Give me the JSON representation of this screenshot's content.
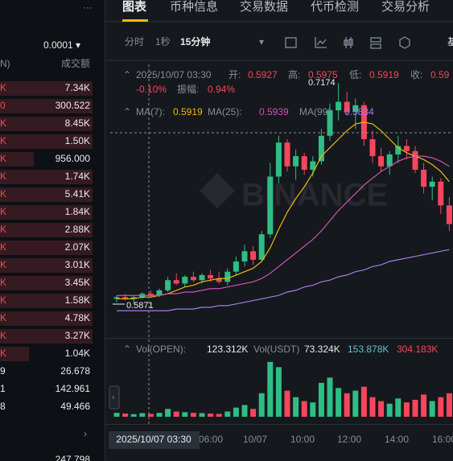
{
  "header": {
    "more": "···",
    "tabs": [
      "图表",
      "币种信息",
      "交易数据",
      "代币检测",
      "交易分析"
    ],
    "active_tab": 0
  },
  "order_book": {
    "precision": "0.0001 ▾",
    "col_left": "N)",
    "col_right": "成交额",
    "rows": [
      [
        "K",
        "7.34K"
      ],
      [
        "0",
        "300.522"
      ],
      [
        "K",
        "8.45K"
      ],
      [
        "K",
        "1.50K"
      ],
      [
        "K",
        "956.000"
      ],
      [
        "K",
        "1.74K"
      ],
      [
        "K",
        "5.41K"
      ],
      [
        "K",
        "1.84K"
      ],
      [
        "K",
        "2.88K"
      ],
      [
        "K",
        "2.07K"
      ],
      [
        "K",
        "3.01K"
      ],
      [
        "K",
        "3.45K"
      ],
      [
        "K",
        "1.58K"
      ],
      [
        "K",
        "4.78K"
      ],
      [
        "K",
        "3.27K"
      ],
      [
        "K",
        "1.04K"
      ],
      [
        "9",
        "26.678"
      ],
      [
        "1",
        "142.961"
      ],
      [
        "8",
        "49.466"
      ]
    ],
    "expand": "›",
    "bottom": "247.798"
  },
  "toolbar": {
    "intervals": [
      "分时",
      "1秒",
      "15分钟"
    ],
    "active": 2,
    "dropdown": "▾",
    "right": "基"
  },
  "ohlc_header": {
    "time": "2025/10/07 03:30",
    "open_label": "开:",
    "open": "0.5927",
    "high_label": "高:",
    "high": "0.5975",
    "low_label": "低:",
    "low": "0.5919",
    "close_label": "收:",
    "close": "0.59",
    "change": "-0.10%",
    "amp_label": "振幅:",
    "amp": "0.94%"
  },
  "ma_legend": [
    {
      "label": "MA(7):",
      "value": "0.5919",
      "color": "#f0b90b"
    },
    {
      "label": "MA(25):",
      "value": "0.5939",
      "color": "#d052b8"
    },
    {
      "label": "MA(99):",
      "value": "0.5834",
      "color": "#a77ae6"
    }
  ],
  "vol_legend": {
    "label": "Vol(OPEN):",
    "value": "123.312K",
    "label2": "Vol(USDT)",
    "v1": "73.324K",
    "v2": "153.878K",
    "v3": "304.183K"
  },
  "price_labels": {
    "high": "0.7174",
    "low": "0.5871"
  },
  "x_labels": [
    "2025/10/07 03:30",
    "06:00",
    "10/07",
    "10:00",
    "12:00",
    "14:00",
    "16:00"
  ],
  "chart_data": {
    "type": "candlestick",
    "ylim": [
      0.567,
      0.729
    ],
    "up_color": "#2ebd85",
    "down_color": "#f6465d",
    "candles": [
      {
        "open": 0.59,
        "high": 0.592,
        "low": 0.588,
        "close": 0.591
      },
      {
        "open": 0.591,
        "high": 0.593,
        "low": 0.589,
        "close": 0.59
      },
      {
        "open": 0.59,
        "high": 0.592,
        "low": 0.587,
        "close": 0.591
      },
      {
        "open": 0.591,
        "high": 0.594,
        "low": 0.59,
        "close": 0.593
      },
      {
        "open": 0.593,
        "high": 0.595,
        "low": 0.591,
        "close": 0.592
      },
      {
        "open": 0.592,
        "high": 0.596,
        "low": 0.591,
        "close": 0.595
      },
      {
        "open": 0.595,
        "high": 0.603,
        "low": 0.594,
        "close": 0.601
      },
      {
        "open": 0.601,
        "high": 0.605,
        "low": 0.598,
        "close": 0.599
      },
      {
        "open": 0.599,
        "high": 0.604,
        "low": 0.597,
        "close": 0.603
      },
      {
        "open": 0.603,
        "high": 0.606,
        "low": 0.6,
        "close": 0.601
      },
      {
        "open": 0.601,
        "high": 0.605,
        "low": 0.599,
        "close": 0.604
      },
      {
        "open": 0.604,
        "high": 0.607,
        "low": 0.6,
        "close": 0.602
      },
      {
        "open": 0.602,
        "high": 0.606,
        "low": 0.599,
        "close": 0.6
      },
      {
        "open": 0.6,
        "high": 0.608,
        "low": 0.598,
        "close": 0.606
      },
      {
        "open": 0.606,
        "high": 0.615,
        "low": 0.604,
        "close": 0.612
      },
      {
        "open": 0.612,
        "high": 0.622,
        "low": 0.609,
        "close": 0.618
      },
      {
        "open": 0.618,
        "high": 0.621,
        "low": 0.61,
        "close": 0.613
      },
      {
        "open": 0.613,
        "high": 0.63,
        "low": 0.612,
        "close": 0.628
      },
      {
        "open": 0.628,
        "high": 0.67,
        "low": 0.626,
        "close": 0.662
      },
      {
        "open": 0.662,
        "high": 0.686,
        "low": 0.658,
        "close": 0.682
      },
      {
        "open": 0.682,
        "high": 0.684,
        "low": 0.665,
        "close": 0.668
      },
      {
        "open": 0.668,
        "high": 0.678,
        "low": 0.66,
        "close": 0.674
      },
      {
        "open": 0.674,
        "high": 0.676,
        "low": 0.663,
        "close": 0.666
      },
      {
        "open": 0.666,
        "high": 0.674,
        "low": 0.662,
        "close": 0.671
      },
      {
        "open": 0.671,
        "high": 0.69,
        "low": 0.669,
        "close": 0.686
      },
      {
        "open": 0.686,
        "high": 0.705,
        "low": 0.683,
        "close": 0.701
      },
      {
        "open": 0.701,
        "high": 0.717,
        "low": 0.695,
        "close": 0.706
      },
      {
        "open": 0.706,
        "high": 0.712,
        "low": 0.698,
        "close": 0.7
      },
      {
        "open": 0.7,
        "high": 0.708,
        "low": 0.69,
        "close": 0.704
      },
      {
        "open": 0.704,
        "high": 0.706,
        "low": 0.68,
        "close": 0.684
      },
      {
        "open": 0.684,
        "high": 0.689,
        "low": 0.67,
        "close": 0.674
      },
      {
        "open": 0.674,
        "high": 0.679,
        "low": 0.665,
        "close": 0.668
      },
      {
        "open": 0.668,
        "high": 0.677,
        "low": 0.663,
        "close": 0.675
      },
      {
        "open": 0.675,
        "high": 0.686,
        "low": 0.67,
        "close": 0.68
      },
      {
        "open": 0.68,
        "high": 0.684,
        "low": 0.672,
        "close": 0.677
      },
      {
        "open": 0.677,
        "high": 0.68,
        "low": 0.664,
        "close": 0.666
      },
      {
        "open": 0.666,
        "high": 0.67,
        "low": 0.652,
        "close": 0.656
      },
      {
        "open": 0.656,
        "high": 0.662,
        "low": 0.648,
        "close": 0.659
      },
      {
        "open": 0.659,
        "high": 0.661,
        "low": 0.64,
        "close": 0.645
      },
      {
        "open": 0.645,
        "high": 0.65,
        "low": 0.63,
        "close": 0.634
      }
    ],
    "ma": [
      {
        "color": "#f0b90b",
        "values": [
          0.59,
          0.59,
          0.59,
          0.591,
          0.591,
          0.592,
          0.593,
          0.595,
          0.597,
          0.598,
          0.6,
          0.601,
          0.602,
          0.602,
          0.604,
          0.606,
          0.608,
          0.612,
          0.62,
          0.631,
          0.641,
          0.649,
          0.656,
          0.664,
          0.674,
          0.679,
          0.684,
          0.689,
          0.693,
          0.694,
          0.693,
          0.689,
          0.684,
          0.679,
          0.676,
          0.674,
          0.672,
          0.669,
          0.665,
          0.659
        ]
      },
      {
        "color": "#d052b8",
        "values": [
          0.592,
          0.592,
          0.592,
          0.592,
          0.592,
          0.592,
          0.593,
          0.593,
          0.594,
          0.594,
          0.595,
          0.596,
          0.596,
          0.597,
          0.598,
          0.599,
          0.6,
          0.602,
          0.605,
          0.609,
          0.613,
          0.617,
          0.621,
          0.625,
          0.63,
          0.636,
          0.642,
          0.647,
          0.652,
          0.657,
          0.661,
          0.665,
          0.668,
          0.671,
          0.673,
          0.674,
          0.674,
          0.673,
          0.671,
          0.668
        ]
      },
      {
        "color": "#a77ae6",
        "values": [
          0.583,
          0.583,
          0.583,
          0.583,
          0.583,
          0.583,
          0.583,
          0.584,
          0.584,
          0.584,
          0.585,
          0.585,
          0.586,
          0.586,
          0.587,
          0.588,
          0.589,
          0.59,
          0.591,
          0.592,
          0.594,
          0.595,
          0.597,
          0.598,
          0.6,
          0.601,
          0.603,
          0.604,
          0.606,
          0.607,
          0.609,
          0.61,
          0.612,
          0.613,
          0.614,
          0.615,
          0.616,
          0.617,
          0.618,
          0.619
        ]
      }
    ],
    "volume": {
      "ylim": [
        0,
        450
      ],
      "values": [
        30,
        25,
        20,
        28,
        22,
        30,
        60,
        40,
        35,
        30,
        28,
        25,
        22,
        40,
        70,
        90,
        60,
        180,
        420,
        380,
        200,
        150,
        120,
        110,
        260,
        300,
        220,
        180,
        200,
        230,
        150,
        120,
        100,
        140,
        110,
        130,
        170,
        120,
        150,
        180
      ]
    }
  }
}
